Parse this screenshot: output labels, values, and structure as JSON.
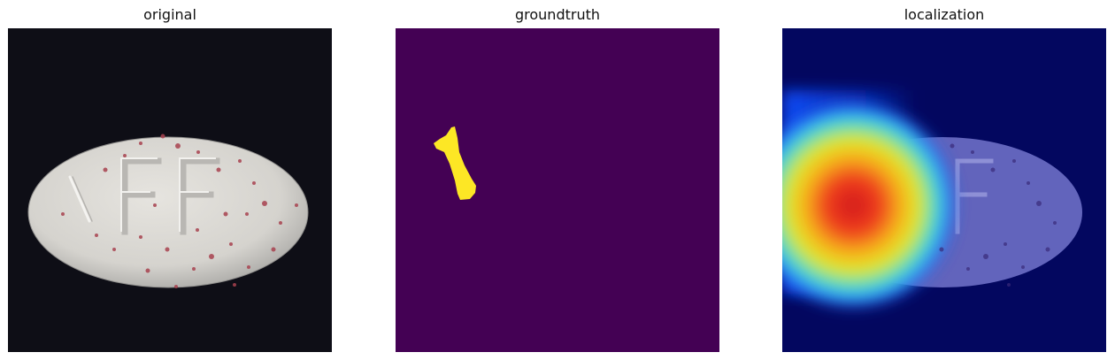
{
  "figure": {
    "panels": [
      {
        "title": "original"
      },
      {
        "title": "groundtruth"
      },
      {
        "title": "localization"
      }
    ]
  }
}
